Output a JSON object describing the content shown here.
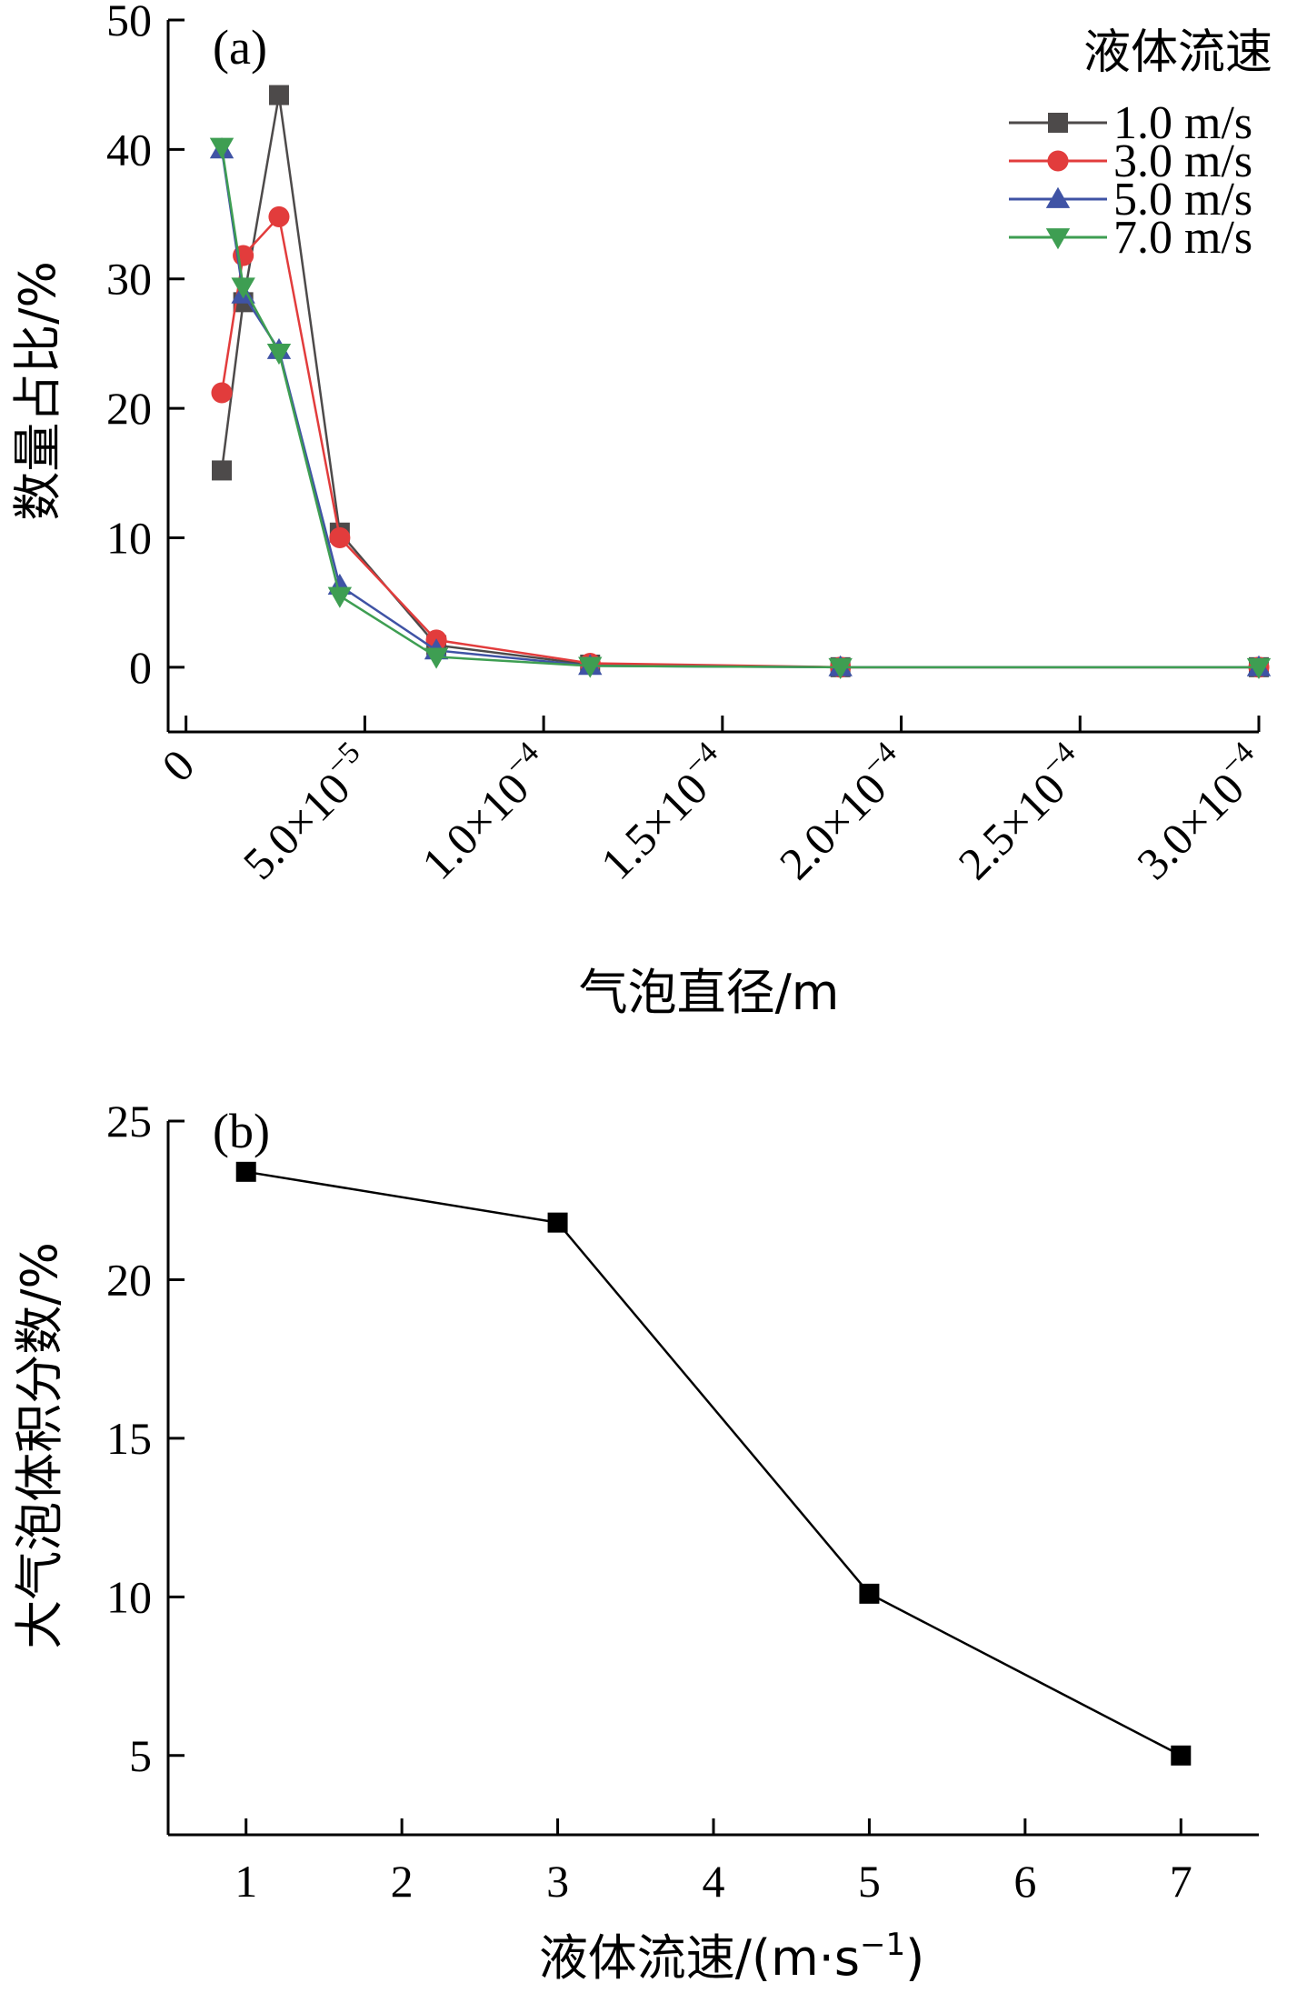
{
  "chart_data": [
    {
      "type": "line",
      "panel_label": "(a)",
      "xlabel": "气泡直径/m",
      "ylabel": "数量占比/%",
      "xlim": [
        -5e-06,
        0.0003
      ],
      "ylim": [
        -5,
        50
      ],
      "x_ticks": [
        0,
        5e-05,
        0.0001,
        0.00015,
        0.0002,
        0.00025,
        0.0003
      ],
      "x_tick_labels": [
        {
          "base": "0",
          "exp": ""
        },
        {
          "base": "5.0×10",
          "exp": "−5"
        },
        {
          "base": "1.0×10",
          "exp": "−4"
        },
        {
          "base": "1.5×10",
          "exp": "−4"
        },
        {
          "base": "2.0×10",
          "exp": "−4"
        },
        {
          "base": "2.5×10",
          "exp": "−4"
        },
        {
          "base": "3.0×10",
          "exp": "−4"
        }
      ],
      "y_ticks": [
        0,
        10,
        20,
        30,
        40,
        50
      ],
      "y_tick_labels": [
        "0",
        "10",
        "20",
        "30",
        "40",
        "50"
      ],
      "legend_title": "液体流速",
      "legend_position": "top-right",
      "series": [
        {
          "name": "1.0 m/s",
          "color": "#4d4a4a",
          "marker": "square",
          "x": [
            1e-05,
            1.6e-05,
            2.6e-05,
            4.3e-05,
            7e-05,
            0.000113,
            0.000183,
            0.0003
          ],
          "y": [
            15.2,
            28.2,
            44.2,
            10.4,
            1.7,
            0.2,
            0.0,
            0.0
          ]
        },
        {
          "name": "3.0 m/s",
          "color": "#e23c3c",
          "marker": "circle",
          "x": [
            1e-05,
            1.6e-05,
            2.6e-05,
            4.3e-05,
            7e-05,
            0.000113,
            0.000183,
            0.0003
          ],
          "y": [
            21.2,
            31.8,
            34.8,
            10.0,
            2.1,
            0.3,
            0.0,
            0.0
          ]
        },
        {
          "name": "5.0 m/s",
          "color": "#3f53a5",
          "marker": "triangle-up",
          "x": [
            1e-05,
            1.6e-05,
            2.6e-05,
            4.3e-05,
            7e-05,
            0.000113,
            0.000183,
            0.0003
          ],
          "y": [
            40.0,
            28.8,
            24.5,
            6.3,
            1.3,
            0.1,
            0.0,
            0.0
          ]
        },
        {
          "name": "7.0 m/s",
          "color": "#3e9e52",
          "marker": "triangle-down",
          "x": [
            1e-05,
            1.6e-05,
            2.6e-05,
            4.3e-05,
            7e-05,
            0.000113,
            0.000183,
            0.0003
          ],
          "y": [
            40.2,
            29.4,
            24.3,
            5.5,
            0.8,
            0.1,
            0.0,
            0.0
          ]
        }
      ]
    },
    {
      "type": "line",
      "panel_label": "(b)",
      "xlabel": "液体流速/(m·s",
      "xlabel_sup": "−1",
      "xlabel_end": ")",
      "ylabel": "大气泡体积分数/%",
      "xlim": [
        0.5,
        7.5
      ],
      "ylim": [
        2.5,
        25
      ],
      "x_ticks": [
        1,
        2,
        3,
        4,
        5,
        6,
        7
      ],
      "x_tick_labels": [
        "1",
        "2",
        "3",
        "4",
        "5",
        "6",
        "7"
      ],
      "y_ticks": [
        5,
        10,
        15,
        20,
        25
      ],
      "y_tick_labels": [
        "5",
        "10",
        "15",
        "20",
        "25"
      ],
      "series": [
        {
          "color": "#000000",
          "marker": "square",
          "x": [
            1,
            3,
            5,
            7
          ],
          "y": [
            23.4,
            21.8,
            10.1,
            5.0
          ]
        }
      ]
    }
  ]
}
